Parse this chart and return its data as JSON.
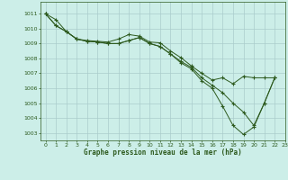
{
  "title": "Graphe pression niveau de la mer (hPa)",
  "background_color": "#cceee8",
  "grid_color": "#aacccc",
  "line_color": "#2d5a1e",
  "xlim": [
    -0.5,
    23
  ],
  "ylim": [
    1002.5,
    1011.8
  ],
  "yticks": [
    1003,
    1004,
    1005,
    1006,
    1007,
    1008,
    1009,
    1010,
    1011
  ],
  "xticks": [
    0,
    1,
    2,
    3,
    4,
    5,
    6,
    7,
    8,
    9,
    10,
    11,
    12,
    13,
    14,
    15,
    16,
    17,
    18,
    19,
    20,
    21,
    22,
    23
  ],
  "series": [
    {
      "x": [
        0,
        1,
        2,
        3,
        4,
        5,
        6,
        7,
        8,
        9,
        10,
        11,
        12,
        13,
        14,
        15,
        16,
        17,
        18,
        19,
        20,
        21,
        22
      ],
      "y": [
        1011.0,
        1010.6,
        1009.8,
        1009.3,
        1009.2,
        1009.15,
        1009.1,
        1009.3,
        1009.6,
        1009.5,
        1009.1,
        1009.05,
        1008.5,
        1008.05,
        1007.5,
        1007.0,
        1006.55,
        1006.7,
        1006.3,
        1006.8,
        1006.7,
        1006.7,
        1006.7
      ]
    },
    {
      "x": [
        0,
        1,
        2,
        3,
        4,
        5,
        6,
        7,
        8,
        9,
        10,
        11,
        12,
        13,
        14,
        15,
        16,
        17,
        18,
        19,
        20,
        21,
        22
      ],
      "y": [
        1011.0,
        1010.2,
        1009.8,
        1009.3,
        1009.15,
        1009.1,
        1009.0,
        1009.0,
        1009.2,
        1009.4,
        1009.0,
        1008.8,
        1008.3,
        1007.8,
        1007.4,
        1006.7,
        1006.2,
        1005.7,
        1005.0,
        1004.4,
        1003.5,
        1005.0,
        1006.7
      ]
    },
    {
      "x": [
        0,
        1,
        2,
        3,
        4,
        5,
        6,
        7,
        8,
        9,
        10,
        11,
        12,
        13,
        14,
        15,
        16,
        17,
        18,
        19,
        20,
        21,
        22
      ],
      "y": [
        1011.0,
        1010.2,
        1009.8,
        1009.3,
        1009.15,
        1009.1,
        1009.0,
        1009.0,
        1009.2,
        1009.4,
        1009.0,
        1008.8,
        1008.3,
        1007.7,
        1007.3,
        1006.5,
        1006.0,
        1004.8,
        1003.5,
        1002.9,
        1003.4,
        1005.0,
        1006.7
      ]
    }
  ]
}
